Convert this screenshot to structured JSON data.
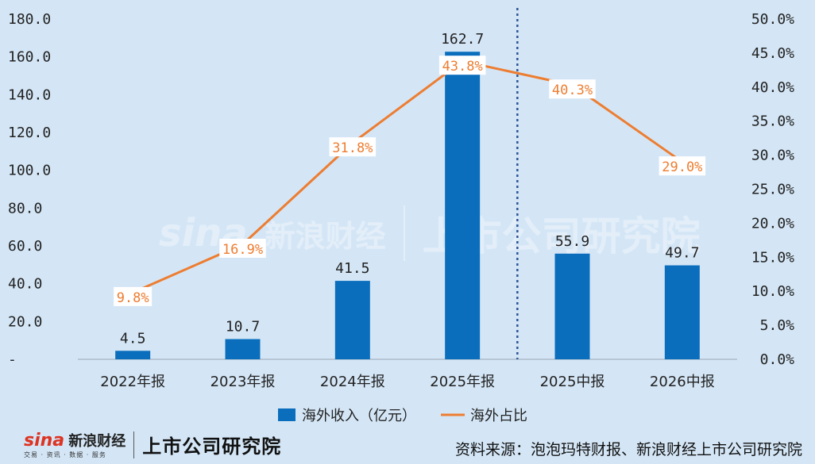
{
  "chart_data": {
    "type": "bar",
    "categories": [
      "2022年报",
      "2023年报",
      "2024年报",
      "2025年报",
      "2025中报",
      "2026中报"
    ],
    "series": [
      {
        "name": "海外收入（亿元）",
        "type": "bar",
        "axis": "left",
        "values": [
          4.5,
          10.7,
          41.5,
          162.7,
          55.9,
          49.7
        ],
        "labels": [
          "4.5",
          "10.7",
          "41.5",
          "162.7",
          "55.9",
          "49.7"
        ],
        "color": "#0a6ebd"
      },
      {
        "name": "海外占比",
        "type": "line",
        "axis": "right",
        "values": [
          9.8,
          16.9,
          31.8,
          43.8,
          40.3,
          29.0
        ],
        "labels": [
          "9.8%",
          "16.9%",
          "31.8%",
          "43.8%",
          "40.3%",
          "29.0%"
        ],
        "color": "#ed7d31"
      }
    ],
    "left_axis": {
      "ylim": [
        0,
        180
      ],
      "ticks": [
        0,
        20,
        40,
        60,
        80,
        100,
        120,
        140,
        160,
        180
      ],
      "tick_labels": [
        "-",
        "20.0",
        "40.0",
        "60.0",
        "80.0",
        "100.0",
        "120.0",
        "140.0",
        "160.0",
        "180.0"
      ]
    },
    "right_axis": {
      "ylim": [
        0,
        50
      ],
      "ticks": [
        0,
        5,
        10,
        15,
        20,
        25,
        30,
        35,
        40,
        45,
        50
      ],
      "tick_labels": [
        "0.0%",
        "5.0%",
        "10.0%",
        "15.0%",
        "20.0%",
        "25.0%",
        "30.0%",
        "35.0%",
        "40.0%",
        "45.0%",
        "50.0%"
      ]
    },
    "divider_after_category": 3,
    "legend_position": "bottom",
    "grid": false
  },
  "branding": {
    "logo_sina": "sina",
    "logo_cn": "新浪财经",
    "logo_sub": "交易 · 资讯 · 数据 · 服务",
    "logo_lab": "上市公司研究院"
  },
  "footer": {
    "source": "资料来源：泡泡玛特财报、新浪财经上市公司研究院"
  }
}
